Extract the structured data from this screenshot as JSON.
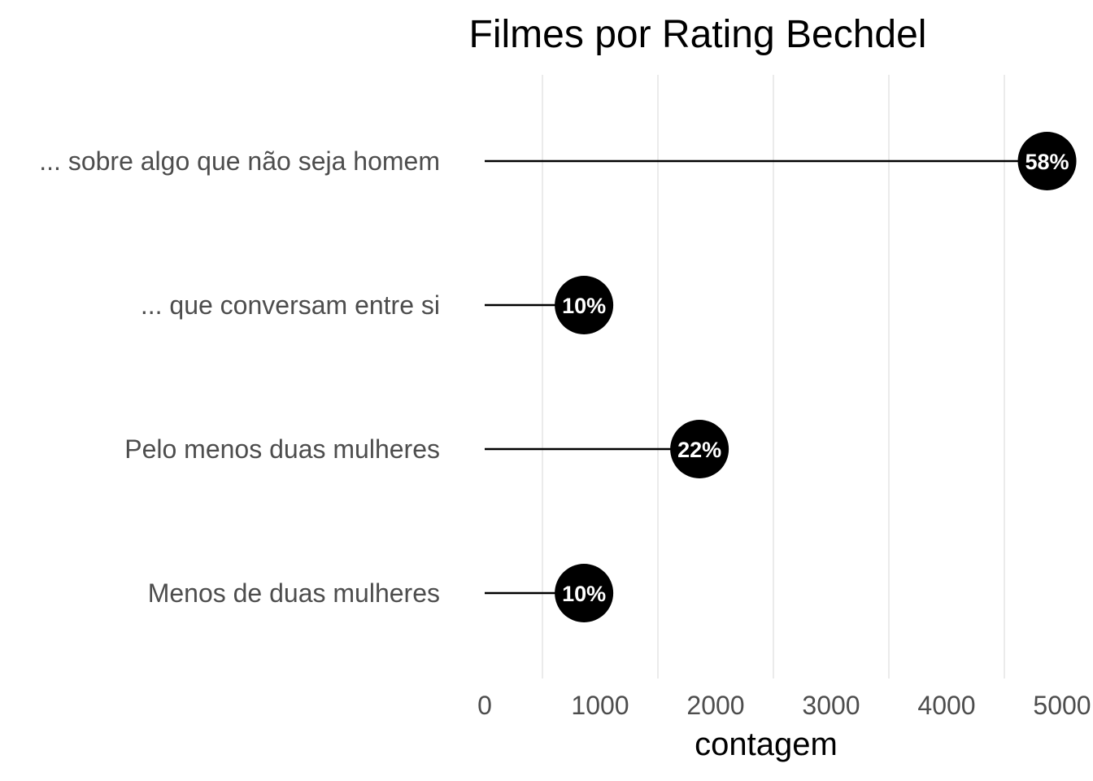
{
  "chart_data": {
    "type": "lollipop",
    "title": "Filmes por Rating Bechdel",
    "xlabel": "contagem",
    "ylabel": "",
    "xlim": [
      0,
      5000
    ],
    "x_ticks": [
      0,
      1000,
      2000,
      3000,
      4000,
      5000
    ],
    "x_tick_labels": [
      "0",
      "1000",
      "2000",
      "3000",
      "4000",
      "5000"
    ],
    "grid": "vertical",
    "categories": [
      "... sobre algo que não seja homem",
      "... que conversam entre si",
      "Pelo menos duas mulheres",
      "Menos de duas mulheres"
    ],
    "values": [
      4870,
      860,
      1860,
      860
    ],
    "labels": [
      "58%",
      "10%",
      "22%",
      "10%"
    ],
    "colors": {
      "mark": "#000000",
      "label_text": "#ffffff",
      "grid": "#ebebeb"
    }
  }
}
